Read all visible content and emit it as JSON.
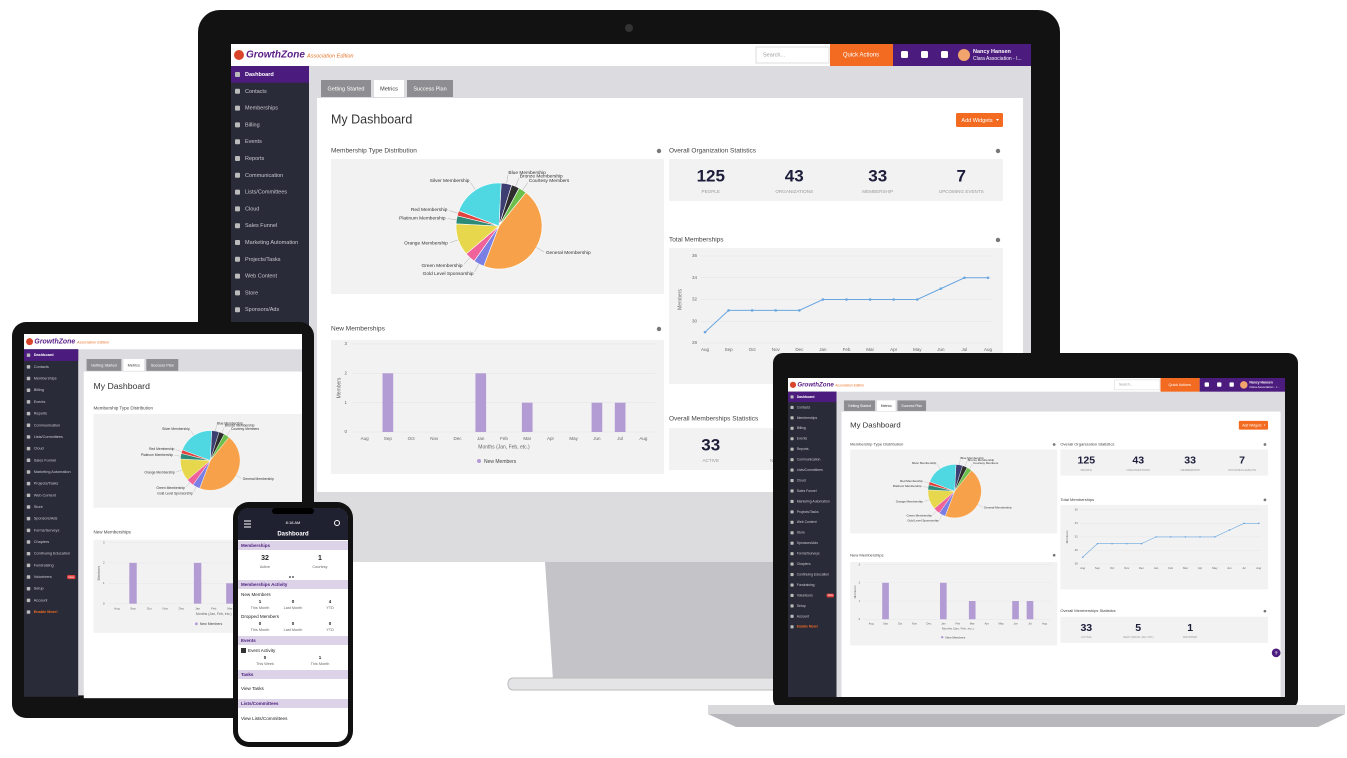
{
  "app": {
    "brand": "GrowthZone",
    "edition": "Association Edition",
    "search": "Search...",
    "quick_actions": "Quick Actions",
    "user_name": "Nancy Hansen",
    "user_org": "Clara Association - I...",
    "new_badge": "New",
    "help": "?"
  },
  "sidebar": [
    "Dashboard",
    "Contacts",
    "Memberships",
    "Billing",
    "Events",
    "Reports",
    "Communication",
    "Lists/Committees",
    "Cloud",
    "Sales Funnel",
    "Marketing Automation",
    "Projects/Tasks",
    "Web Content",
    "Store",
    "Sponsors/Ads",
    "Forms/Surveys",
    "Chapters",
    "Continuing Education",
    "Fundraising",
    "Volunteers",
    "Setup",
    "Account",
    "Enable More!"
  ],
  "tabs": [
    "Getting Started",
    "Metrics",
    "Success Plan"
  ],
  "active_tab": 1,
  "dashboard": {
    "title": "My Dashboard",
    "add_widgets": "Add Widgets",
    "membership_type": {
      "type": "pie",
      "title": "Membership Type Distribution",
      "labels": [
        "Blue Membership",
        "Bronze Membership",
        "Courtesy Members",
        "General Membership",
        "Gold Level Sponsorship",
        "Green Membership",
        "Orange Membership",
        "Platinum Membership",
        "Red Membership",
        "Silver Membership"
      ],
      "values": [
        4,
        3,
        3,
        45,
        4,
        4,
        12,
        3,
        2,
        20
      ],
      "colors": [
        "#3d3f73",
        "#2e2e2e",
        "#6cbf4a",
        "#f7a24b",
        "#7b7fe3",
        "#f0639a",
        "#e6d74c",
        "#2b8a78",
        "#e2433f",
        "#4fd8e2"
      ]
    },
    "org_stats": {
      "title": "Overall Organization Statistics",
      "items": [
        {
          "value": "125",
          "label": "PEOPLE"
        },
        {
          "value": "43",
          "label": "ORGANIZATIONS"
        },
        {
          "value": "33",
          "label": "MEMBERSHIP"
        },
        {
          "value": "7",
          "label": "UPCOMING EVENTS"
        }
      ]
    },
    "total_memberships": {
      "type": "line",
      "title": "Total Memberships",
      "categories": [
        "Aug",
        "Sep",
        "Oct",
        "Nov",
        "Dec",
        "Jan",
        "Feb",
        "Mar",
        "Apr",
        "May",
        "Jun",
        "Jul",
        "Aug"
      ],
      "values": [
        29,
        31,
        31,
        31,
        31,
        32,
        32,
        32,
        32,
        32,
        33,
        34,
        34
      ],
      "ylim": [
        28,
        36
      ],
      "yticks": [
        28,
        30,
        32,
        34,
        36
      ],
      "y_label": "Members",
      "color": "#6aa6df"
    },
    "new_memberships": {
      "type": "bar",
      "title": "New Memberships",
      "categories": [
        "Aug",
        "Sep",
        "Oct",
        "Nov",
        "Dec",
        "Jan",
        "Feb",
        "Mar",
        "Apr",
        "May",
        "Jun",
        "Jul",
        "Aug"
      ],
      "values": [
        0,
        2,
        0,
        0,
        0,
        2,
        0,
        1,
        0,
        0,
        1,
        1,
        0
      ],
      "ylim": [
        0,
        3
      ],
      "yticks": [
        0,
        1,
        2,
        3
      ],
      "y_label": "Members",
      "x_label": "Months (Jan, Feb, etc.)",
      "legend": "New Members",
      "color": "#b39cd4"
    },
    "membership_stats": {
      "title": "Overall Memberships Statistics",
      "items": [
        {
          "value": "33",
          "label": "ACTIVE"
        },
        {
          "value": "5",
          "label": "NEW (SINCE JAN 1ST)"
        },
        {
          "value": "1",
          "label": "DROPPED"
        }
      ]
    }
  },
  "phone": {
    "time": "8:18 AM",
    "title": "Dashboard",
    "memberships": {
      "title": "Memberships",
      "items": [
        {
          "value": "32",
          "label": "Active"
        },
        {
          "value": "1",
          "label": "Courtesy"
        }
      ]
    },
    "activity_title": "Memberships Activity",
    "activity": [
      {
        "title": "New Members",
        "items": [
          {
            "value": "1",
            "label": "This Month"
          },
          {
            "value": "0",
            "label": "Last Month"
          },
          {
            "value": "4",
            "label": "YTD"
          }
        ]
      },
      {
        "title": "Dropped Members",
        "items": [
          {
            "value": "0",
            "label": "This Month"
          },
          {
            "value": "0",
            "label": "Last Month"
          },
          {
            "value": "0",
            "label": "YTD"
          }
        ]
      }
    ],
    "events_title": "Events",
    "events": {
      "title": "Event Activity",
      "items": [
        {
          "value": "0",
          "label": "This Week"
        },
        {
          "value": "1",
          "label": "This Month"
        }
      ]
    },
    "tasks_title": "Tasks",
    "tasks_link": "View Tasks",
    "lists_title": "Lists/Committees",
    "lists_link": "View Lists/Committees"
  }
}
